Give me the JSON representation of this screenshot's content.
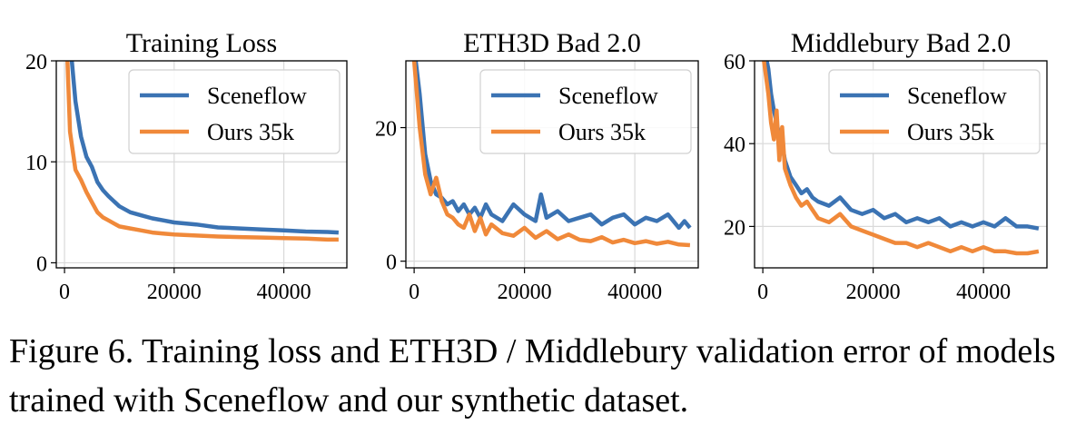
{
  "figure": {
    "caption": "Figure 6. Training loss and ETH3D / Middlebury validation error of models trained with Sceneflow and our synthetic dataset."
  },
  "colors": {
    "sceneflow": "#3b73b3",
    "ours": "#f0893a",
    "grid": "#d9d9d9"
  },
  "chart_data": [
    {
      "type": "line",
      "title": "Training Loss",
      "xlabel": "",
      "ylabel": "",
      "xlim": [
        -1500,
        51500
      ],
      "ylim": [
        -0.5,
        20
      ],
      "xticks": [
        0,
        20000,
        40000
      ],
      "yticks": [
        0,
        10,
        20
      ],
      "grid": true,
      "legend": "top-right",
      "series": [
        {
          "name": "Sceneflow",
          "x": [
            0,
            1000,
            2000,
            3000,
            4000,
            5000,
            6000,
            7000,
            8000,
            9000,
            10000,
            12000,
            14000,
            16000,
            18000,
            20000,
            24000,
            28000,
            32000,
            36000,
            40000,
            44000,
            48000,
            50000
          ],
          "y": [
            30,
            22,
            16,
            12.5,
            10.5,
            9.5,
            8,
            7.2,
            6.6,
            6.1,
            5.6,
            5.0,
            4.7,
            4.4,
            4.2,
            4.0,
            3.8,
            3.5,
            3.4,
            3.3,
            3.2,
            3.1,
            3.05,
            3.0
          ]
        },
        {
          "name": "Ours 35k",
          "x": [
            0,
            1000,
            2000,
            3000,
            4000,
            5000,
            6000,
            7000,
            8000,
            9000,
            10000,
            12000,
            14000,
            16000,
            18000,
            20000,
            24000,
            28000,
            32000,
            36000,
            40000,
            44000,
            48000,
            50000
          ],
          "y": [
            28,
            13,
            9.2,
            8.2,
            7.0,
            6.0,
            5.0,
            4.5,
            4.2,
            3.9,
            3.6,
            3.4,
            3.2,
            3.0,
            2.9,
            2.8,
            2.7,
            2.6,
            2.55,
            2.5,
            2.45,
            2.4,
            2.3,
            2.3
          ]
        }
      ]
    },
    {
      "type": "line",
      "title": "ETH3D Bad 2.0",
      "xlabel": "",
      "ylabel": "",
      "xlim": [
        -1500,
        51500
      ],
      "ylim": [
        -1,
        30
      ],
      "xticks": [
        0,
        20000,
        40000
      ],
      "yticks": [
        0,
        20
      ],
      "grid": true,
      "legend": "top-right",
      "series": [
        {
          "name": "Sceneflow",
          "x": [
            0,
            1000,
            2000,
            3000,
            4000,
            5000,
            6000,
            7000,
            8000,
            9000,
            10000,
            11000,
            12000,
            13000,
            14000,
            16000,
            18000,
            20000,
            22000,
            23000,
            24000,
            26000,
            28000,
            30000,
            32000,
            34000,
            36000,
            38000,
            40000,
            42000,
            44000,
            46000,
            48000,
            49000,
            50000
          ],
          "y": [
            32,
            25,
            16,
            12,
            10,
            9.5,
            8.5,
            9,
            7.5,
            8.5,
            7.0,
            8.0,
            6.5,
            8.5,
            7.0,
            6.0,
            8.5,
            7.0,
            6.0,
            10.0,
            6.5,
            7.5,
            6.0,
            6.5,
            7.0,
            5.5,
            6.5,
            7.0,
            5.5,
            6.5,
            6.0,
            7.0,
            5.0,
            6.0,
            5.0
          ]
        },
        {
          "name": "Ours 35k",
          "x": [
            0,
            1000,
            2000,
            3000,
            4000,
            5000,
            6000,
            7000,
            8000,
            9000,
            10000,
            11000,
            12000,
            13000,
            14000,
            16000,
            18000,
            20000,
            22000,
            24000,
            26000,
            28000,
            30000,
            32000,
            34000,
            36000,
            38000,
            40000,
            42000,
            44000,
            46000,
            48000,
            50000
          ],
          "y": [
            30,
            20,
            13,
            10,
            12.5,
            9,
            7,
            6.5,
            5.5,
            5,
            7,
            4.5,
            6.5,
            4.0,
            5.5,
            4.2,
            3.8,
            5.0,
            3.5,
            4.5,
            3.3,
            4.0,
            3.2,
            3.0,
            3.6,
            2.8,
            3.2,
            2.7,
            3.0,
            2.6,
            2.9,
            2.5,
            2.4
          ]
        }
      ]
    },
    {
      "type": "line",
      "title": "Middlebury Bad 2.0",
      "xlabel": "",
      "ylabel": "",
      "xlim": [
        -1500,
        51500
      ],
      "ylim": [
        10,
        60
      ],
      "xticks": [
        0,
        20000,
        40000
      ],
      "yticks": [
        20,
        40,
        60
      ],
      "grid": true,
      "legend": "top-right",
      "series": [
        {
          "name": "Sceneflow",
          "x": [
            0,
            1000,
            1500,
            2000,
            2500,
            3000,
            3500,
            4000,
            5000,
            6000,
            7000,
            8000,
            9000,
            10000,
            12000,
            14000,
            16000,
            18000,
            20000,
            22000,
            24000,
            26000,
            28000,
            30000,
            32000,
            34000,
            36000,
            38000,
            40000,
            42000,
            44000,
            46000,
            48000,
            50000
          ],
          "y": [
            65,
            58,
            52,
            48,
            45,
            42,
            40,
            36,
            32,
            30,
            28,
            29,
            27,
            26,
            25,
            27,
            24,
            23,
            24,
            22,
            23,
            21,
            22,
            21,
            22,
            20,
            21,
            20,
            21,
            20,
            22,
            20,
            20,
            19.5
          ]
        },
        {
          "name": "Ours 35k",
          "x": [
            0,
            1000,
            1500,
            2000,
            2500,
            3000,
            3500,
            4000,
            5000,
            6000,
            7000,
            8000,
            9000,
            10000,
            12000,
            14000,
            16000,
            18000,
            20000,
            22000,
            24000,
            26000,
            28000,
            30000,
            32000,
            34000,
            36000,
            38000,
            40000,
            42000,
            44000,
            46000,
            48000,
            50000
          ],
          "y": [
            62,
            52,
            45,
            41,
            48,
            36,
            44,
            34,
            30,
            27,
            25,
            26,
            24,
            22,
            21,
            23,
            20,
            19,
            18,
            17,
            16,
            16,
            15,
            16,
            15,
            14,
            15,
            14,
            15,
            14,
            14,
            13.5,
            13.5,
            14
          ]
        }
      ]
    }
  ]
}
